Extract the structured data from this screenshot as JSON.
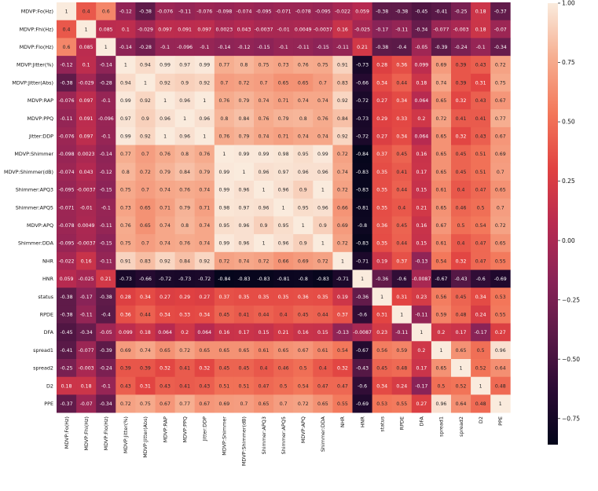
{
  "chart_data": {
    "type": "heatmap",
    "title": "",
    "xlabel": "",
    "ylabel": "",
    "variables": [
      "MDVP:Fo(Hz)",
      "MDVP:Fhi(Hz)",
      "MDVP:Flo(Hz)",
      "MDVP:Jitter(%)",
      "MDVP:Jitter(Abs)",
      "MDVP:RAP",
      "MDVP:PPQ",
      "Jitter:DDP",
      "MDVP:Shimmer",
      "MDVP:Shimmer(dB)",
      "Shimmer:APQ3",
      "Shimmer:APQ5",
      "MDVP:APQ",
      "Shimmer:DDA",
      "NHR",
      "HNR",
      "status",
      "RPDE",
      "DFA",
      "spread1",
      "spread2",
      "D2",
      "PPE"
    ],
    "matrix": [
      [
        1,
        0.4,
        0.6,
        -0.12,
        -0.38,
        -0.076,
        -0.11,
        -0.076,
        -0.098,
        -0.074,
        -0.095,
        -0.071,
        -0.078,
        -0.095,
        -0.022,
        0.059,
        -0.38,
        -0.38,
        -0.45,
        -0.41,
        -0.25,
        0.18,
        -0.37
      ],
      [
        0.4,
        1,
        0.085,
        0.1,
        -0.029,
        0.097,
        0.091,
        0.097,
        0.0023,
        0.043,
        -0.0037,
        -0.01,
        0.0049,
        -0.0037,
        0.16,
        -0.025,
        -0.17,
        -0.11,
        -0.34,
        -0.077,
        -0.003,
        0.18,
        -0.07
      ],
      [
        0.6,
        0.085,
        1,
        -0.14,
        -0.28,
        -0.1,
        -0.096,
        -0.1,
        -0.14,
        -0.12,
        -0.15,
        -0.1,
        -0.11,
        -0.15,
        -0.11,
        0.21,
        -0.38,
        -0.4,
        -0.05,
        -0.39,
        -0.24,
        -0.1,
        -0.34
      ],
      [
        -0.12,
        0.1,
        -0.14,
        1,
        0.94,
        0.99,
        0.97,
        0.99,
        0.77,
        0.8,
        0.75,
        0.73,
        0.76,
        0.75,
        0.91,
        -0.73,
        0.28,
        0.36,
        0.099,
        0.69,
        0.39,
        0.43,
        0.72
      ],
      [
        -0.38,
        -0.029,
        -0.28,
        0.94,
        1,
        0.92,
        0.9,
        0.92,
        0.7,
        0.72,
        0.7,
        0.65,
        0.65,
        0.7,
        0.83,
        -0.66,
        0.34,
        0.44,
        0.18,
        0.74,
        0.39,
        0.31,
        0.75
      ],
      [
        -0.076,
        0.097,
        -0.1,
        0.99,
        0.92,
        1,
        0.96,
        1,
        0.76,
        0.79,
        0.74,
        0.71,
        0.74,
        0.74,
        0.92,
        -0.72,
        0.27,
        0.34,
        0.064,
        0.65,
        0.32,
        0.43,
        0.67
      ],
      [
        -0.11,
        0.091,
        -0.096,
        0.97,
        0.9,
        0.96,
        1,
        0.96,
        0.8,
        0.84,
        0.76,
        0.79,
        0.8,
        0.76,
        0.84,
        -0.73,
        0.29,
        0.33,
        0.2,
        0.72,
        0.41,
        0.41,
        0.77
      ],
      [
        -0.076,
        0.097,
        -0.1,
        0.99,
        0.92,
        1,
        0.96,
        1,
        0.76,
        0.79,
        0.74,
        0.71,
        0.74,
        0.74,
        0.92,
        -0.72,
        0.27,
        0.34,
        0.064,
        0.65,
        0.32,
        0.43,
        0.67
      ],
      [
        -0.098,
        0.0023,
        -0.14,
        0.77,
        0.7,
        0.76,
        0.8,
        0.76,
        1,
        0.99,
        0.99,
        0.98,
        0.95,
        0.99,
        0.72,
        -0.84,
        0.37,
        0.45,
        0.16,
        0.65,
        0.45,
        0.51,
        0.69
      ],
      [
        -0.074,
        0.043,
        -0.12,
        0.8,
        0.72,
        0.79,
        0.84,
        0.79,
        0.99,
        1,
        0.96,
        0.97,
        0.96,
        0.96,
        0.74,
        -0.83,
        0.35,
        0.41,
        0.17,
        0.65,
        0.45,
        0.51,
        0.7
      ],
      [
        -0.095,
        -0.0037,
        -0.15,
        0.75,
        0.7,
        0.74,
        0.76,
        0.74,
        0.99,
        0.96,
        1,
        0.96,
        0.9,
        1,
        0.72,
        -0.83,
        0.35,
        0.44,
        0.15,
        0.61,
        0.4,
        0.47,
        0.65
      ],
      [
        -0.071,
        -0.01,
        -0.1,
        0.73,
        0.65,
        0.71,
        0.79,
        0.71,
        0.98,
        0.97,
        0.96,
        1,
        0.95,
        0.96,
        0.66,
        -0.81,
        0.35,
        0.4,
        0.21,
        0.65,
        0.46,
        0.5,
        0.7
      ],
      [
        -0.078,
        0.0049,
        -0.11,
        0.76,
        0.65,
        0.74,
        0.8,
        0.74,
        0.95,
        0.96,
        0.9,
        0.95,
        1,
        0.9,
        0.69,
        -0.8,
        0.36,
        0.45,
        0.16,
        0.67,
        0.5,
        0.54,
        0.72
      ],
      [
        -0.095,
        -0.0037,
        -0.15,
        0.75,
        0.7,
        0.74,
        0.76,
        0.74,
        0.99,
        0.96,
        1,
        0.96,
        0.9,
        1,
        0.72,
        -0.83,
        0.35,
        0.44,
        0.15,
        0.61,
        0.4,
        0.47,
        0.65
      ],
      [
        -0.022,
        0.16,
        -0.11,
        0.91,
        0.83,
        0.92,
        0.84,
        0.92,
        0.72,
        0.74,
        0.72,
        0.66,
        0.69,
        0.72,
        1,
        -0.71,
        0.19,
        0.37,
        -0.13,
        0.54,
        0.32,
        0.47,
        0.55
      ],
      [
        0.059,
        -0.025,
        0.21,
        -0.73,
        -0.66,
        -0.72,
        -0.73,
        -0.72,
        -0.84,
        -0.83,
        -0.83,
        -0.81,
        -0.8,
        -0.83,
        -0.71,
        1,
        -0.36,
        -0.6,
        -0.0087,
        -0.67,
        -0.43,
        -0.6,
        -0.69
      ],
      [
        -0.38,
        -0.17,
        -0.38,
        0.28,
        0.34,
        0.27,
        0.29,
        0.27,
        0.37,
        0.35,
        0.35,
        0.35,
        0.36,
        0.35,
        0.19,
        -0.36,
        1,
        0.31,
        0.23,
        0.56,
        0.45,
        0.34,
        0.53
      ],
      [
        -0.38,
        -0.11,
        -0.4,
        0.36,
        0.44,
        0.34,
        0.33,
        0.34,
        0.45,
        0.41,
        0.44,
        0.4,
        0.45,
        0.44,
        0.37,
        -0.6,
        0.31,
        1,
        -0.11,
        0.59,
        0.48,
        0.24,
        0.55
      ],
      [
        -0.45,
        -0.34,
        -0.05,
        0.099,
        0.18,
        0.064,
        0.2,
        0.064,
        0.16,
        0.17,
        0.15,
        0.21,
        0.16,
        0.15,
        -0.13,
        -0.0087,
        0.23,
        -0.11,
        1,
        0.2,
        0.17,
        -0.17,
        0.27
      ],
      [
        -0.41,
        -0.077,
        -0.39,
        0.69,
        0.74,
        0.65,
        0.72,
        0.65,
        0.65,
        0.65,
        0.61,
        0.65,
        0.67,
        0.61,
        0.54,
        -0.67,
        0.56,
        0.59,
        0.2,
        1,
        0.65,
        0.5,
        0.96
      ],
      [
        -0.25,
        -0.003,
        -0.24,
        0.39,
        0.39,
        0.32,
        0.41,
        0.32,
        0.45,
        0.45,
        0.4,
        0.46,
        0.5,
        0.4,
        0.32,
        -0.43,
        0.45,
        0.48,
        0.17,
        0.65,
        1,
        0.52,
        0.64
      ],
      [
        0.18,
        0.18,
        -0.1,
        0.43,
        0.31,
        0.43,
        0.41,
        0.43,
        0.51,
        0.51,
        0.47,
        0.5,
        0.54,
        0.47,
        0.47,
        -0.6,
        0.34,
        0.24,
        -0.17,
        0.5,
        0.52,
        1,
        0.48
      ],
      [
        -0.37,
        -0.07,
        -0.34,
        0.72,
        0.75,
        0.67,
        0.77,
        0.67,
        0.69,
        0.7,
        0.65,
        0.7,
        0.72,
        0.65,
        0.55,
        -0.69,
        0.53,
        0.55,
        0.27,
        0.96,
        0.64,
        0.48,
        1
      ]
    ],
    "value_range": [
      -0.86,
      1.0
    ],
    "colorbar": {
      "ticks": [
        1.0,
        0.75,
        0.5,
        0.25,
        0.0,
        -0.25,
        -0.5,
        -0.75
      ],
      "tick_labels": [
        "1.00",
        "0.75",
        "0.50",
        "0.25",
        "0.00",
        "−0.25",
        "−0.50",
        "−0.75"
      ]
    },
    "colormap": "rocket",
    "colors": {
      "stops": [
        "#03051a",
        "#2b0b34",
        "#5c1a48",
        "#8a2357",
        "#b82a50",
        "#e14241",
        "#f3775a",
        "#f6ad8f",
        "#faebdd"
      ]
    }
  }
}
